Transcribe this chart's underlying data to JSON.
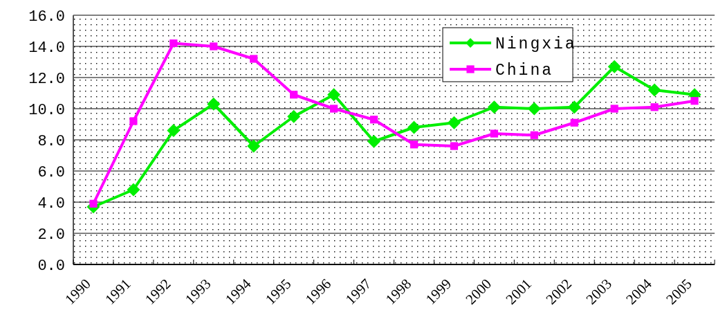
{
  "chart_data": {
    "type": "line",
    "categories": [
      "1990",
      "1991",
      "1992",
      "1993",
      "1994",
      "1995",
      "1996",
      "1997",
      "1998",
      "1999",
      "2000",
      "2001",
      "2002",
      "2003",
      "2004",
      "2005"
    ],
    "series": [
      {
        "name": "Ningxia",
        "color": "#00ee00",
        "marker": "diamond",
        "values": [
          3.7,
          4.8,
          8.6,
          10.3,
          7.6,
          9.5,
          10.9,
          7.9,
          8.8,
          9.1,
          10.1,
          10.0,
          10.1,
          12.7,
          11.2,
          10.9
        ]
      },
      {
        "name": "China",
        "color": "#ff00ff",
        "marker": "square",
        "values": [
          3.9,
          9.2,
          14.2,
          14.0,
          13.2,
          10.9,
          10.0,
          9.3,
          7.7,
          7.6,
          8.4,
          8.3,
          9.1,
          10.0,
          10.1,
          10.5
        ]
      }
    ],
    "ylim": [
      0,
      16
    ],
    "yticks": [
      {
        "value": 0,
        "label": "0.0"
      },
      {
        "value": 2,
        "label": "2.0"
      },
      {
        "value": 4,
        "label": "4.0"
      },
      {
        "value": 6,
        "label": "6.0"
      },
      {
        "value": 8,
        "label": "8.0"
      },
      {
        "value": 10,
        "label": "10.0"
      },
      {
        "value": 12,
        "label": "12.0"
      },
      {
        "value": 14,
        "label": "14.0"
      },
      {
        "value": 16,
        "label": "16.0"
      }
    ],
    "grid": "y",
    "legend": "top right",
    "line_style": "solid"
  }
}
